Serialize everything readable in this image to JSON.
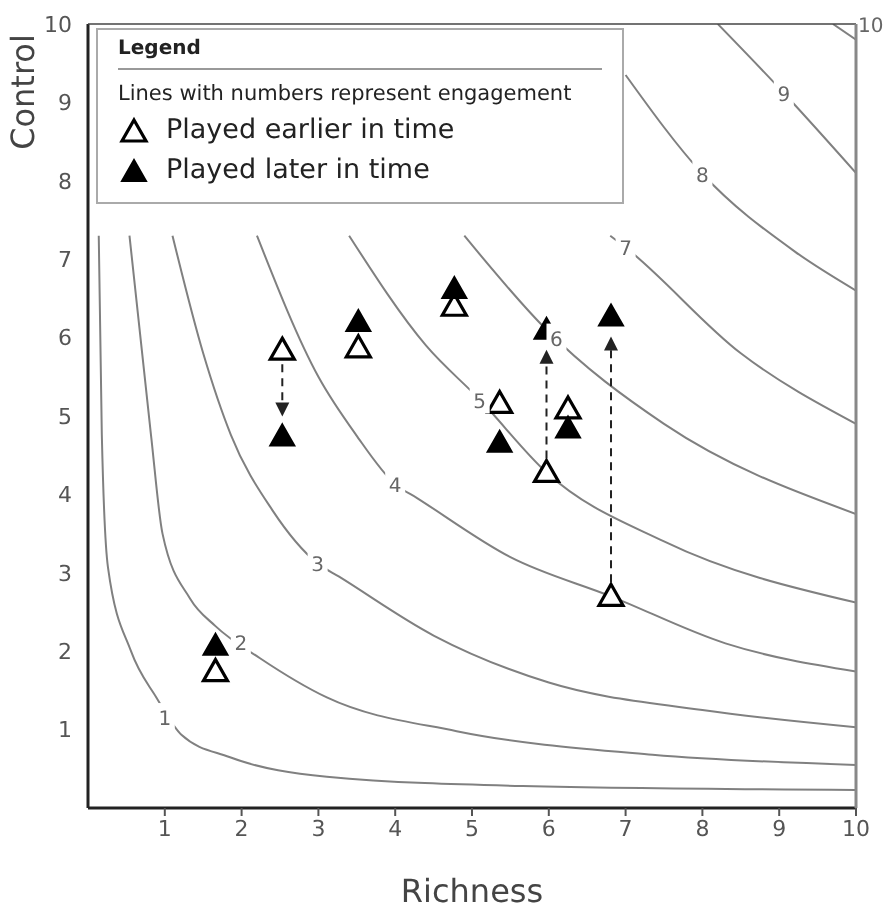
{
  "chart_data": {
    "type": "line",
    "xlabel": "Richness",
    "ylabel": "Control",
    "legend_title": "Legend",
    "legend": "top left",
    "xlim": [
      0,
      10
    ],
    "ylim": [
      0,
      10
    ],
    "xticks": [
      1,
      2,
      3,
      4,
      5,
      6,
      7,
      8,
      9,
      10
    ],
    "yticks": [
      1,
      2,
      3,
      4,
      5,
      6,
      7,
      8,
      9,
      10
    ],
    "grid": false,
    "series": [
      {
        "color": "#808080",
        "x": [
          0.14,
          0.18,
          0.26,
          0.56,
          0.89,
          1.22,
          1.84,
          3.11,
          5.66,
          10
        ],
        "values": [
          7.3,
          4.76,
          3.07,
          2.0,
          1.41,
          0.93,
          0.65,
          0.4,
          0.28,
          0.23
        ]
      },
      {
        "color": "#808080",
        "x": [
          0.54,
          0.82,
          0.97,
          1.33,
          1.66,
          2.24,
          3.11,
          4.8,
          7.35,
          10
        ],
        "values": [
          7.3,
          4.76,
          3.5,
          2.67,
          2.32,
          1.91,
          1.41,
          0.98,
          0.68,
          0.55
        ]
      },
      {
        "color": "#808080",
        "x": [
          1.1,
          1.5,
          1.86,
          2.4,
          2.99,
          3.27,
          4.5,
          6,
          8,
          10
        ],
        "values": [
          7.3,
          5.8,
          4.76,
          3.8,
          3.12,
          2.95,
          2.2,
          1.6,
          1.25,
          1.03
        ]
      },
      {
        "color": "#808080",
        "x": [
          2.2,
          3.0,
          3.49,
          4.0,
          4.29,
          5.5,
          6.81,
          8.3,
          10
        ],
        "values": [
          7.3,
          5.5,
          4.76,
          4.13,
          3.95,
          3.2,
          2.7,
          2.1,
          1.74
        ]
      },
      {
        "color": "#808080",
        "x": [
          3.4,
          4.4,
          5.1,
          5.97,
          7.5,
          10
        ],
        "values": [
          7.3,
          5.9,
          5.21,
          4.28,
          3.4,
          2.62
        ]
      },
      {
        "color": "#808080",
        "x": [
          4.9,
          5.97,
          7.5,
          10
        ],
        "values": [
          7.3,
          6.1,
          4.9,
          3.75
        ]
      },
      {
        "color": "#808080",
        "x": [
          6.8,
          7.0,
          8.5,
          10
        ],
        "values": [
          7.3,
          7.15,
          5.8,
          4.9
        ]
      },
      {
        "color": "#808080",
        "x": [
          7.0,
          8.0,
          9.2,
          10
        ],
        "values": [
          9.35,
          8.09,
          7.1,
          6.6
        ]
      },
      {
        "color": "#808080",
        "x": [
          8.2,
          9.06,
          10
        ],
        "values": [
          10,
          9.12,
          8.1
        ]
      },
      {
        "name": "10",
        "color": "#808080",
        "x": [
          9.7,
          10
        ],
        "values": [
          10,
          9.8
        ]
      },
      {
        "type": "scatter",
        "name": "Played earlier in time",
        "color": "#000000",
        "marker": "triangle",
        "x": [
          1.66,
          2.53,
          3.52,
          4.77,
          5.36,
          5.97,
          6.25,
          6.81
        ],
        "values": [
          1.74,
          5.84,
          5.87,
          6.4,
          5.16,
          4.28,
          5.09,
          2.7
        ]
      },
      {
        "type": "scatter",
        "name": "Played later in time",
        "color": "#000000",
        "marker": "triangle",
        "x": [
          1.66,
          2.53,
          3.52,
          4.77,
          5.36,
          5.97,
          6.25,
          6.81
        ],
        "values": [
          2.07,
          4.74,
          6.2,
          6.62,
          4.66,
          6.1,
          4.84,
          6.27
        ]
      }
    ],
    "annotations": [
      "Lines with numbers represent engagement",
      {
        "text": "1",
        "x": 1.0,
        "y": 1.16
      },
      {
        "text": "2",
        "x": 1.99,
        "y": 2.12
      },
      {
        "text": "3",
        "x": 2.99,
        "y": 3.12
      },
      {
        "text": "4",
        "x": 4.0,
        "y": 4.13
      },
      {
        "text": "5",
        "x": 5.1,
        "y": 5.21
      },
      {
        "text": "6",
        "x": 6.1,
        "y": 6.0
      },
      {
        "text": "7",
        "x": 7.0,
        "y": 7.15
      },
      {
        "text": "8",
        "x": 8.0,
        "y": 8.09
      },
      {
        "text": "9",
        "x": 9.06,
        "y": 9.12
      }
    ]
  }
}
